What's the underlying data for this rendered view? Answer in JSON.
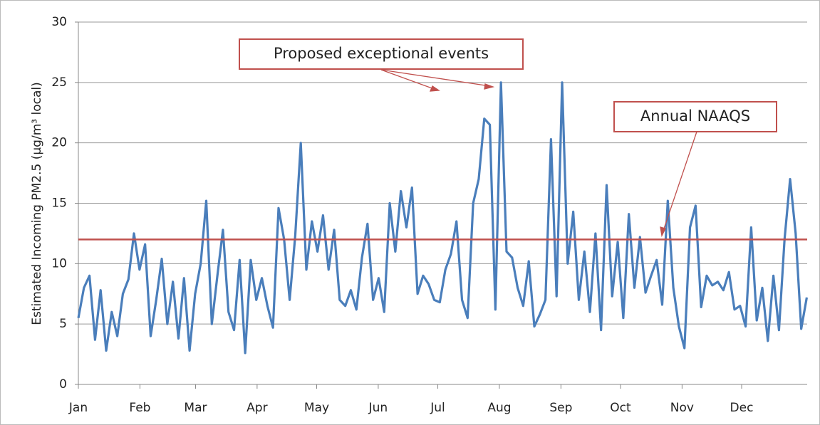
{
  "chart_data": {
    "type": "line",
    "y_label": "Estimated Incoming PM2.5 (µg/m³ local)",
    "annotations": [
      "Proposed exceptional events",
      "Annual NAAQS"
    ],
    "naaqs": 12,
    "naaqs_color": "#c0504d",
    "xlim": [
      0,
      367
    ],
    "ylim": [
      0,
      30
    ],
    "yticks": [
      0,
      5,
      10,
      15,
      20,
      25,
      30
    ],
    "xticks": [
      {
        "value": 0,
        "label": "Jan"
      },
      {
        "value": 31,
        "label": "Feb"
      },
      {
        "value": 59,
        "label": "Mar"
      },
      {
        "value": 90,
        "label": "Apr"
      },
      {
        "value": 120,
        "label": "May"
      },
      {
        "value": 151,
        "label": "Jun"
      },
      {
        "value": 181,
        "label": "Jul"
      },
      {
        "value": 212,
        "label": "Aug"
      },
      {
        "value": 243,
        "label": "Sep"
      },
      {
        "value": 273,
        "label": "Oct"
      },
      {
        "value": 304,
        "label": "Nov"
      },
      {
        "value": 334,
        "label": "Dec"
      }
    ],
    "grid": true,
    "x": [
      0,
      2.8,
      5.6,
      8.4,
      11.2,
      14,
      16.8,
      19.6,
      22.4,
      25.2,
      28,
      30.8,
      33.6,
      36.4,
      39.2,
      42,
      44.8,
      47.6,
      50.4,
      53.2,
      56,
      58.8,
      61.6,
      64.4,
      67.2,
      70,
      72.8,
      75.6,
      78.4,
      81.2,
      84,
      86.8,
      89.6,
      92.4,
      95.2,
      98,
      100.8,
      103.6,
      106.4,
      109.2,
      112,
      114.8,
      117.6,
      120.4,
      123.2,
      126,
      128.8,
      131.6,
      134.4,
      137.2,
      140,
      142.8,
      145.6,
      148.4,
      151.2,
      154,
      156.8,
      159.6,
      162.4,
      165.2,
      168,
      170.8,
      173.6,
      176.4,
      179.2,
      182,
      184.8,
      187.6,
      190.4,
      193.2,
      196,
      198.8,
      201.6,
      204.4,
      207.2,
      210,
      212.8,
      215.6,
      218.4,
      221.2,
      224,
      226.8,
      229.6,
      232.4,
      235.2,
      238,
      240.8,
      243.6,
      246.4,
      249.2,
      252,
      254.8,
      257.6,
      260.4,
      263.2,
      266,
      268.8,
      271.6,
      274.4,
      277.2,
      280,
      282.8,
      285.6,
      288.4,
      291.2,
      294,
      296.8,
      299.6,
      302.4,
      305.2,
      308,
      310.8,
      313.6,
      316.4,
      319.2,
      322,
      324.8,
      327.6,
      330.4,
      333.2,
      336,
      338.8,
      341.6,
      344.4,
      347.2,
      350,
      352.8,
      355.6,
      358.4,
      361.2,
      364,
      366.8
    ],
    "series": [
      {
        "color": "#4a7ebb",
        "values": [
          5.5,
          8,
          9,
          3.7,
          7.8,
          2.8,
          6,
          4,
          7.5,
          8.7,
          12.5,
          9.5,
          11.6,
          4,
          7,
          10.4,
          5,
          8.5,
          3.8,
          8.8,
          2.8,
          7.5,
          10,
          15.2,
          5,
          9,
          12.8,
          6,
          4.5,
          10.3,
          2.6,
          10.3,
          7,
          8.8,
          6.5,
          4.7,
          14.6,
          12,
          7,
          12.3,
          20,
          9.5,
          13.5,
          11,
          14,
          9.5,
          12.8,
          7,
          6.5,
          7.8,
          6.2,
          10.5,
          13.3,
          7,
          8.8,
          6,
          15,
          11,
          16,
          13,
          16.3,
          7.5,
          9,
          8.3,
          7,
          6.8,
          9.5,
          10.8,
          13.5,
          7,
          5.5,
          15,
          17,
          22,
          21.5,
          6.2,
          25,
          11,
          10.5,
          8,
          6.5,
          10.2,
          4.8,
          5.8,
          7,
          20.3,
          7.3,
          25,
          10,
          14.3,
          7,
          11,
          6,
          12.5,
          4.5,
          16.5,
          7.3,
          11.8,
          5.5,
          14.1,
          8,
          12.2,
          7.6,
          9,
          10.3,
          6.6,
          15.2,
          8,
          4.8,
          3,
          13,
          14.8,
          6.4,
          9,
          8.2,
          8.5,
          7.8,
          9.3,
          6.2,
          6.5,
          4.8,
          13,
          5.3,
          8,
          3.6,
          9,
          4.5,
          12,
          17,
          12.5,
          4.6,
          7.2
        ]
      }
    ]
  }
}
